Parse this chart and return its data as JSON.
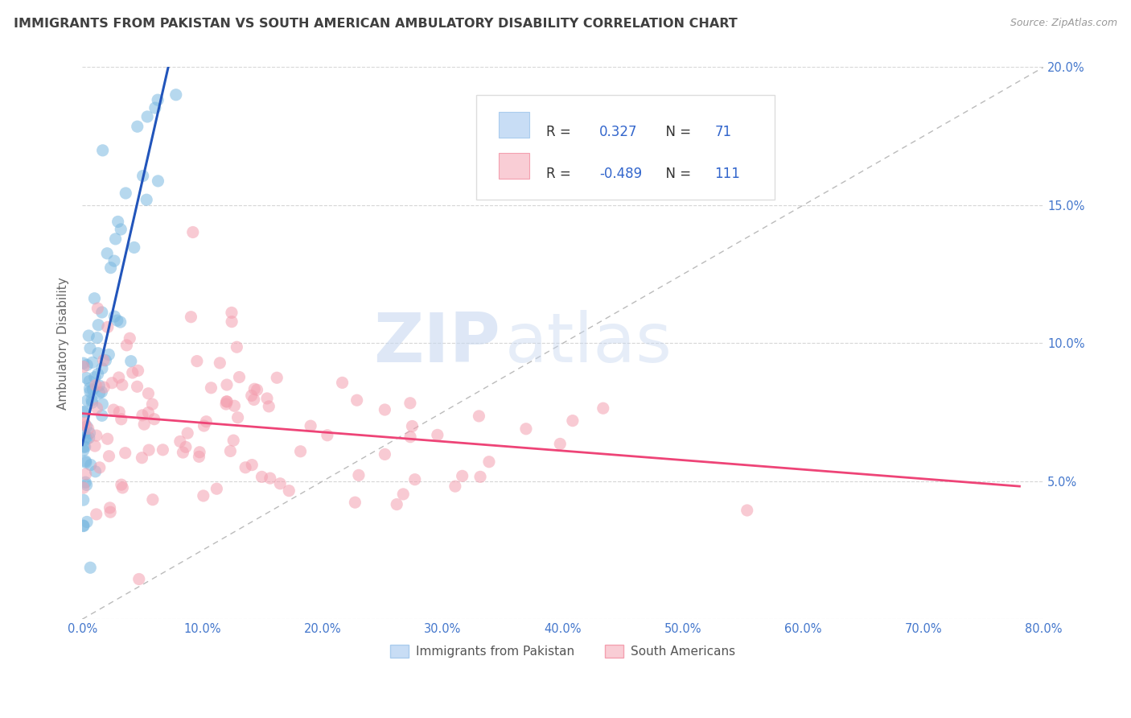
{
  "title": "IMMIGRANTS FROM PAKISTAN VS SOUTH AMERICAN AMBULATORY DISABILITY CORRELATION CHART",
  "source": "Source: ZipAtlas.com",
  "ylabel": "Ambulatory Disability",
  "watermark_zip": "ZIP",
  "watermark_atlas": "atlas",
  "legend_label1": "Immigrants from Pakistan",
  "legend_label2": "South Americans",
  "r1": 0.327,
  "n1": 71,
  "r2": -0.489,
  "n2": 111,
  "color1": "#7ab8e0",
  "color2": "#f4a0b0",
  "trend1_color": "#2255bb",
  "trend2_color": "#ee4477",
  "xlim": [
    0.0,
    0.8
  ],
  "ylim": [
    0.0,
    0.2
  ],
  "xticks": [
    0.0,
    0.1,
    0.2,
    0.3,
    0.4,
    0.5,
    0.6,
    0.7,
    0.8
  ],
  "xtick_labels": [
    "0.0%",
    "10.0%",
    "20.0%",
    "30.0%",
    "40.0%",
    "50.0%",
    "60.0%",
    "70.0%",
    "80.0%"
  ],
  "yticks": [
    0.0,
    0.05,
    0.1,
    0.15,
    0.2
  ],
  "ytick_labels_right": [
    "",
    "5.0%",
    "10.0%",
    "15.0%",
    "20.0%"
  ],
  "grid_color": "#cccccc",
  "background_color": "#ffffff",
  "title_color": "#404040",
  "tick_color": "#4477cc",
  "seed": 42
}
